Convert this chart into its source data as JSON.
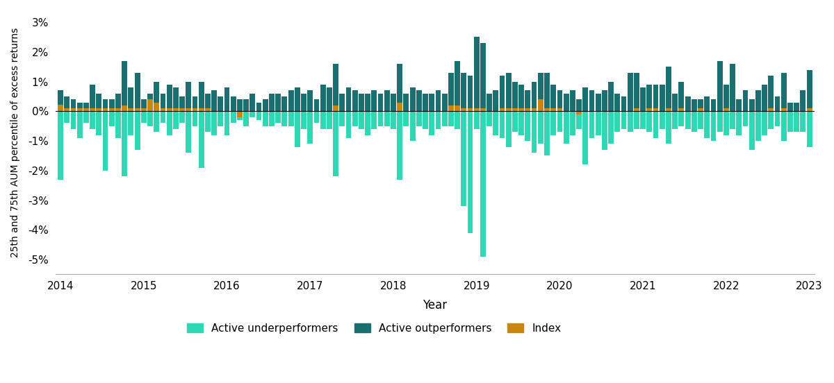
{
  "xlabel": "Year",
  "ylabel": "25th and 75th AUM percentile of excess returns",
  "ylim": [
    -0.055,
    0.034
  ],
  "yticks": [
    -0.05,
    -0.04,
    -0.03,
    -0.02,
    -0.01,
    0.0,
    0.01,
    0.02,
    0.03
  ],
  "ytick_labels": [
    "-5%",
    "-4%",
    "-3%",
    "-2%",
    "-1%",
    "0%",
    "1%",
    "2%",
    "3%"
  ],
  "color_under": "#2ED8B4",
  "color_over": "#1A7070",
  "color_index": "#C8860A",
  "legend_labels": [
    "Active underperformers",
    "Active outperformers",
    "Index"
  ],
  "x_label_names": [
    "2014",
    "2015",
    "2016",
    "2017",
    "2018",
    "2019",
    "2020",
    "2021",
    "2022",
    "2023"
  ],
  "active_under": [
    -0.023,
    -0.004,
    -0.006,
    -0.009,
    -0.004,
    -0.006,
    -0.008,
    -0.02,
    -0.005,
    -0.009,
    -0.022,
    -0.008,
    -0.013,
    -0.004,
    -0.005,
    -0.007,
    -0.004,
    -0.008,
    -0.006,
    -0.004,
    -0.014,
    -0.005,
    -0.019,
    -0.007,
    -0.008,
    -0.005,
    -0.008,
    -0.004,
    -0.003,
    -0.005,
    -0.002,
    -0.003,
    -0.005,
    -0.005,
    -0.004,
    -0.005,
    -0.005,
    -0.012,
    -0.006,
    -0.011,
    -0.004,
    -0.006,
    -0.006,
    -0.022,
    -0.005,
    -0.009,
    -0.005,
    -0.006,
    -0.008,
    -0.006,
    -0.005,
    -0.005,
    -0.006,
    -0.023,
    -0.005,
    -0.01,
    -0.005,
    -0.006,
    -0.008,
    -0.006,
    -0.005,
    -0.005,
    -0.006,
    -0.032,
    -0.041,
    -0.006,
    -0.049,
    -0.005,
    -0.008,
    -0.009,
    -0.012,
    -0.007,
    -0.008,
    -0.01,
    -0.014,
    -0.011,
    -0.015,
    -0.008,
    -0.007,
    -0.011,
    -0.008,
    -0.006,
    -0.018,
    -0.009,
    -0.008,
    -0.013,
    -0.011,
    -0.007,
    -0.006,
    -0.007,
    -0.006,
    -0.006,
    -0.007,
    -0.009,
    -0.006,
    -0.011,
    -0.006,
    -0.005,
    -0.006,
    -0.007,
    -0.006,
    -0.009,
    -0.01,
    -0.007,
    -0.008,
    -0.006,
    -0.008,
    -0.005,
    -0.013,
    -0.01,
    -0.008,
    -0.006,
    -0.005,
    -0.01,
    -0.007,
    -0.007,
    -0.007,
    -0.012
  ],
  "active_over": [
    0.007,
    0.005,
    0.004,
    0.003,
    0.003,
    0.009,
    0.006,
    0.004,
    0.004,
    0.006,
    0.017,
    0.008,
    0.013,
    0.004,
    0.006,
    0.01,
    0.006,
    0.009,
    0.008,
    0.005,
    0.01,
    0.005,
    0.01,
    0.006,
    0.007,
    0.005,
    0.008,
    0.005,
    0.004,
    0.004,
    0.006,
    0.003,
    0.004,
    0.006,
    0.006,
    0.005,
    0.007,
    0.008,
    0.006,
    0.007,
    0.004,
    0.009,
    0.008,
    0.016,
    0.006,
    0.008,
    0.007,
    0.006,
    0.006,
    0.007,
    0.006,
    0.007,
    0.006,
    0.016,
    0.006,
    0.008,
    0.007,
    0.006,
    0.006,
    0.007,
    0.006,
    0.013,
    0.017,
    0.013,
    0.012,
    0.025,
    0.023,
    0.006,
    0.007,
    0.012,
    0.013,
    0.01,
    0.009,
    0.007,
    0.01,
    0.013,
    0.013,
    0.009,
    0.007,
    0.006,
    0.007,
    0.004,
    0.008,
    0.007,
    0.006,
    0.007,
    0.01,
    0.006,
    0.005,
    0.013,
    0.013,
    0.008,
    0.009,
    0.009,
    0.009,
    0.015,
    0.006,
    0.01,
    0.005,
    0.004,
    0.004,
    0.005,
    0.004,
    0.017,
    0.009,
    0.016,
    0.004,
    0.007,
    0.004,
    0.007,
    0.009,
    0.012,
    0.005,
    0.013,
    0.003,
    0.003,
    0.007,
    0.014
  ],
  "index": [
    0.0022,
    0.001,
    0.001,
    0.001,
    0.001,
    0.001,
    0.001,
    0.001,
    0.001,
    0.001,
    0.002,
    0.001,
    0.001,
    0.001,
    0.004,
    0.003,
    0.001,
    0.001,
    0.001,
    0.001,
    0.001,
    0.001,
    0.001,
    0.001,
    0.0,
    0.0,
    0.0,
    0.0,
    -0.002,
    0.0,
    0.0,
    0.0,
    0.0,
    0.0,
    0.0,
    0.0,
    0.0,
    0.0,
    0.0,
    0.0,
    0.0,
    0.0,
    0.0,
    0.002,
    0.0,
    0.0,
    0.0,
    0.0,
    0.0,
    0.0,
    0.0,
    0.0,
    0.0,
    0.003,
    0.0,
    0.0,
    0.0,
    0.0,
    0.0,
    0.0,
    0.0,
    0.002,
    0.002,
    0.001,
    0.001,
    0.001,
    0.001,
    0.0,
    0.0,
    0.001,
    0.001,
    0.001,
    0.001,
    0.001,
    0.001,
    0.004,
    0.001,
    0.001,
    0.001,
    0.0,
    0.0,
    -0.001,
    0.0,
    0.0,
    0.0,
    0.0,
    0.0,
    0.0,
    0.0,
    0.0,
    0.001,
    0.0,
    0.001,
    0.001,
    0.0,
    0.001,
    0.0,
    0.001,
    0.0,
    0.0,
    0.001,
    0.0,
    0.0,
    0.0,
    0.001,
    0.0,
    0.0,
    0.0,
    0.0,
    0.0,
    0.0,
    0.001,
    0.0,
    0.001,
    0.0,
    0.0,
    0.0,
    0.001
  ]
}
